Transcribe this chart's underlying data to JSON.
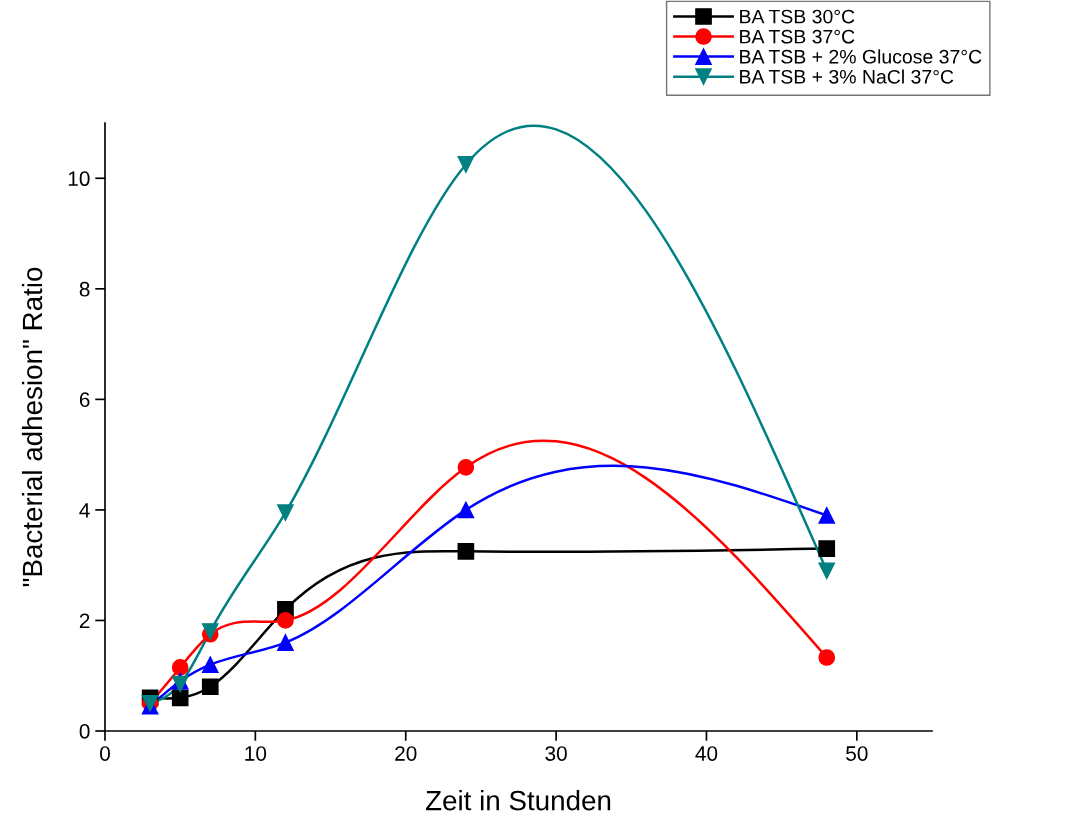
{
  "chart_data": {
    "type": "line",
    "xlabel": "Zeit in Stunden",
    "ylabel": "\"Bacterial adhesion\" Ratio",
    "x": [
      3,
      5,
      7,
      12,
      24,
      48
    ],
    "xlim": [
      0,
      55
    ],
    "xticks": [
      0,
      10,
      20,
      30,
      40,
      50
    ],
    "ylim": [
      0,
      11
    ],
    "yticks": [
      0,
      2,
      4,
      6,
      8,
      10
    ],
    "grid": false,
    "legend": "top right",
    "line_style": "solid",
    "series": [
      {
        "name": "BA TSB 30°C",
        "color": "#000000",
        "marker": "square",
        "values": [
          0.6,
          0.6,
          0.8,
          2.2,
          3.25,
          3.3
        ]
      },
      {
        "name": "BA TSB 37°C",
        "color": "#ff0000",
        "marker": "circle",
        "values": [
          0.5,
          1.15,
          1.75,
          2.0,
          4.77,
          1.33
        ]
      },
      {
        "name": "BA TSB + 2% Glucose 37°C",
        "color": "#0000ff",
        "marker": "triangle",
        "values": [
          0.45,
          0.9,
          1.2,
          1.6,
          4.0,
          3.9
        ]
      },
      {
        "name": "BA TSB + 3% NaCl 37°C",
        "color": "#008080",
        "marker": "triangle_down",
        "values": [
          0.5,
          0.85,
          1.8,
          3.95,
          10.25,
          2.9
        ]
      }
    ]
  }
}
